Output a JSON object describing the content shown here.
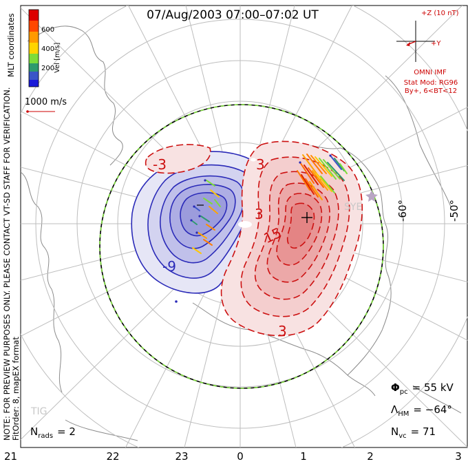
{
  "title": "07/Aug/2003 07:00–07:02 UT",
  "side_left": {
    "line1": "NOTE: FOR PREVIEW PURPOSES ONLY. PLEASE CONTACT VT-SD STAFF FOR VERIFICATION.",
    "line2": "FitOrder: 8, mapEX format"
  },
  "mlt_label": "MLT coordinates",
  "colorbar": {
    "label": "Vel [m/s]",
    "ticks": [
      "600",
      "400",
      "200"
    ],
    "colors": [
      "#dd0000",
      "#ff6a00",
      "#ffc800",
      "#7ddc3a",
      "#2e9a6e",
      "#3a55c8",
      "#1a1ad8"
    ]
  },
  "scale_vector_label": "1000 m/s",
  "imf": {
    "bz_label": "+Z (10 nT)",
    "by_label": "+Y",
    "omni_label": "OMNI IMF",
    "stat_mod": "Stat Mod: RG96",
    "by_condition": "By+, 6<BT<12"
  },
  "latitude_labels": [
    "-60°",
    "-50°"
  ],
  "contour_labels": {
    "neg_3": "-3",
    "neg_9": "-9",
    "pos_3_top": "3",
    "pos_3_mid": "3",
    "pos_15": "15",
    "pos_3_bottom": "3"
  },
  "station_labels": {
    "sye": "SYE",
    "tig": "TIG"
  },
  "mlt_hours": [
    "21",
    "22",
    "23",
    "0",
    "1",
    "2",
    "3"
  ],
  "stats": {
    "phi_pc_symbol": "Φ",
    "phi_pc_sub": "pc",
    "phi_pc_value": "= 55 kV",
    "lambda_hm_symbol": "Λ",
    "lambda_hm_sub": "HM",
    "lambda_hm_value": "= −64°",
    "n_vc_symbol": "N",
    "n_vc_sub": "vc",
    "n_vc_value": "= 71",
    "n_rads_symbol": "N",
    "n_rads_sub": "rads",
    "n_rads_value": "= 2"
  },
  "colors": {
    "negative_cell": "#2a2ab8",
    "positive_cell": "#cc1010",
    "boundary_green": "#7cdc3a",
    "grid": "#bbbbbb",
    "imf_red": "#cc0000"
  }
}
